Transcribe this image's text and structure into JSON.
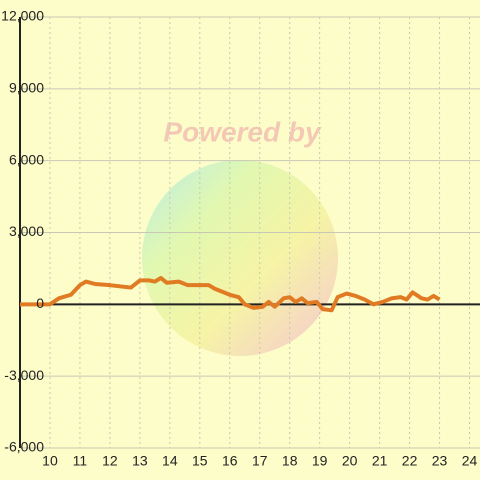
{
  "chart_data": {
    "type": "line",
    "watermark": "Powered by",
    "x": [
      9,
      10,
      10.3,
      10.7,
      11,
      11.2,
      11.5,
      12,
      12.7,
      13,
      13.3,
      13.5,
      13.7,
      13.9,
      14.3,
      14.6,
      15,
      15.3,
      15.5,
      16,
      16.3,
      16.5,
      16.8,
      17.1,
      17.3,
      17.5,
      17.8,
      18,
      18.2,
      18.4,
      18.6,
      18.9,
      19.1,
      19.4,
      19.6,
      19.9,
      20.2,
      20.5,
      20.8,
      21.1,
      21.4,
      21.7,
      21.9,
      22.1,
      22.4,
      22.6,
      22.8,
      23
    ],
    "series": [
      {
        "color": "#e07b24",
        "values": [
          0,
          0,
          250,
          400,
          800,
          950,
          850,
          800,
          700,
          1000,
          1000,
          950,
          1100,
          900,
          950,
          800,
          800,
          800,
          650,
          400,
          300,
          0,
          -150,
          -100,
          100,
          -100,
          250,
          300,
          100,
          250,
          50,
          100,
          -200,
          -250,
          300,
          450,
          350,
          200,
          0,
          100,
          250,
          300,
          200,
          500,
          250,
          200,
          350,
          200
        ]
      }
    ],
    "xlim": [
      9,
      24.35
    ],
    "xticks": [
      10,
      11,
      12,
      13,
      14,
      15,
      16,
      17,
      18,
      19,
      20,
      21,
      22,
      23,
      24
    ],
    "ylim": [
      -6000,
      12000
    ],
    "yticks": [
      {
        "value": -6000,
        "label": "-6,000"
      },
      {
        "value": -3000,
        "label": "-3,000"
      },
      0,
      {
        "value": 3000,
        "label": "3,000"
      },
      {
        "value": 6000,
        "label": "6,000"
      },
      {
        "value": 9000,
        "label": "9,000"
      },
      {
        "value": 12000,
        "label": "12,000"
      }
    ],
    "grid": true
  }
}
